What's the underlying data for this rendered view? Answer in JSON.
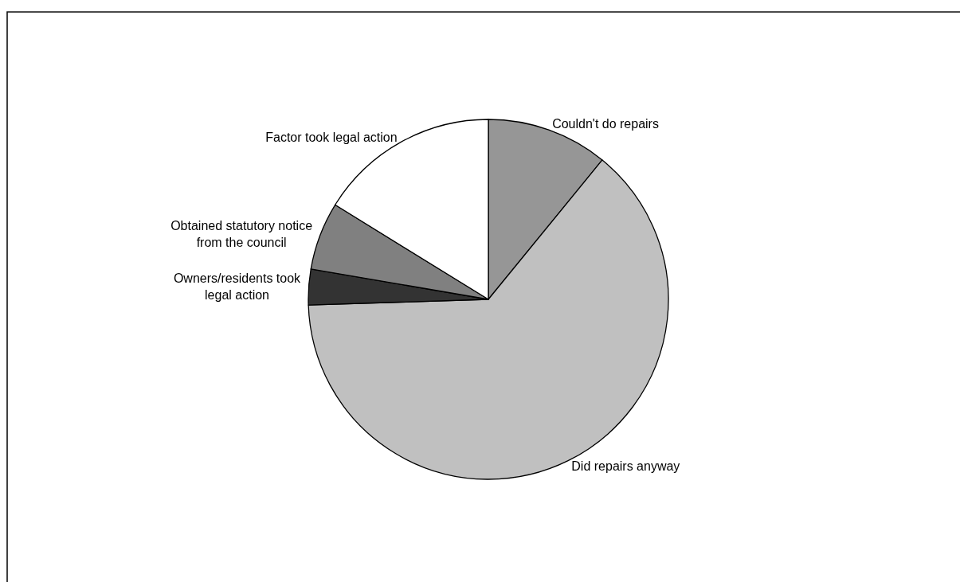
{
  "chart_data": {
    "type": "pie",
    "categories": [
      "Couldn't do repairs",
      "Did repairs anyway",
      "Owners/residents took\nlegal action",
      "Obtained statutory notice\nfrom the council",
      "Factor took legal action"
    ],
    "values": [
      10.9,
      63.6,
      3.2,
      6.1,
      16.2
    ],
    "colors": [
      "#969696",
      "#c0c0c0",
      "#333333",
      "#808080",
      "#ffffff"
    ]
  }
}
